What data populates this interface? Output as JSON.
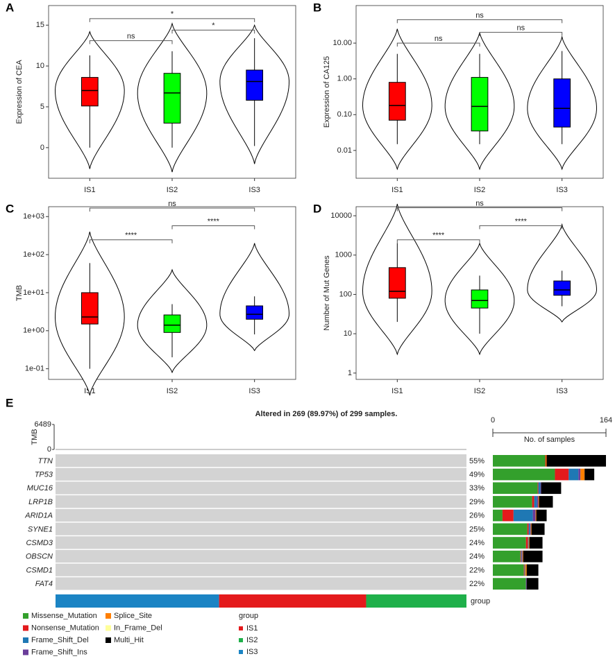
{
  "chart_data": [
    {
      "type": "violin-box",
      "panel": "A",
      "y_label": "Expression of CEA",
      "categories": [
        "IS1",
        "IS2",
        "IS3"
      ],
      "colors": [
        "#ff0000",
        "#00ff00",
        "#0000ff"
      ],
      "ylim": [
        -3.75,
        17.4
      ],
      "yticks": [
        0,
        5,
        10,
        15
      ],
      "boxes": [
        {
          "q1": 5.1,
          "median": 7.0,
          "q3": 8.6,
          "whisker_low": 0,
          "whisker_high": 11.3,
          "violin_min": -2.6,
          "violin_max": 14.2
        },
        {
          "q1": 3.0,
          "median": 6.7,
          "q3": 9.1,
          "whisker_low": 0,
          "whisker_high": 11.8,
          "violin_min": -3.0,
          "violin_max": 15.2
        },
        {
          "q1": 5.8,
          "median": 8.1,
          "q3": 9.5,
          "whisker_low": 0.2,
          "whisker_high": 13.4,
          "violin_min": -2.0,
          "violin_max": 15.0
        }
      ],
      "comparisons": [
        {
          "from": "IS1",
          "to": "IS2",
          "label": "ns",
          "y": 13.1
        },
        {
          "from": "IS2",
          "to": "IS3",
          "label": "*",
          "y": 14.4
        },
        {
          "from": "IS1",
          "to": "IS3",
          "label": "*",
          "y": 15.8
        }
      ]
    },
    {
      "type": "violin-box",
      "panel": "B",
      "y_label": "Expression of CA125",
      "categories": [
        "IS1",
        "IS2",
        "IS3"
      ],
      "log": true,
      "colors": [
        "#ff0000",
        "#00ff00",
        "#0000ff"
      ],
      "ylim": [
        0.00167,
        112
      ],
      "yticks": [
        {
          "value": 0.01,
          "label": "0.01"
        },
        {
          "value": 0.1,
          "label": "0.10"
        },
        {
          "value": 1,
          "label": "1.00"
        },
        {
          "value": 10,
          "label": "10.00"
        }
      ],
      "boxes": [
        {
          "q1": 0.07,
          "median": 0.18,
          "q3": 0.8,
          "whisker_low": 0.015,
          "whisker_high": 5,
          "violin_min": 0.003,
          "violin_max": 25
        },
        {
          "q1": 0.035,
          "median": 0.17,
          "q3": 1.1,
          "whisker_low": 0.015,
          "whisker_high": 5,
          "violin_min": 0.003,
          "violin_max": 20
        },
        {
          "q1": 0.045,
          "median": 0.15,
          "q3": 1.0,
          "whisker_low": 0.015,
          "whisker_high": 6,
          "violin_min": 0.003,
          "violin_max": 15
        }
      ],
      "comparisons": [
        {
          "from": "IS1",
          "to": "IS2",
          "label": "ns",
          "y": 10
        },
        {
          "from": "IS2",
          "to": "IS3",
          "label": "ns",
          "y": 20
        },
        {
          "from": "IS1",
          "to": "IS3",
          "label": "ns",
          "y": 45
        }
      ]
    },
    {
      "type": "violin-box",
      "panel": "C",
      "y_label": "TMB",
      "categories": [
        "IS1",
        "IS2",
        "IS3"
      ],
      "log": true,
      "colors": [
        "#ff0000",
        "#00ff00",
        "#0000ff"
      ],
      "ylim": [
        0.0525,
        1820
      ],
      "yticks": [
        {
          "value": 0.1,
          "label": "1e-01"
        },
        {
          "value": 1,
          "label": "1e+00"
        },
        {
          "value": 10,
          "label": "1e+01"
        },
        {
          "value": 100,
          "label": "1e+02"
        },
        {
          "value": 1000,
          "label": "1e+03"
        }
      ],
      "boxes": [
        {
          "q1": 1.5,
          "median": 2.3,
          "q3": 10,
          "whisker_low": 0.1,
          "whisker_high": 60,
          "violin_min": 0.02,
          "violin_max": 400
        },
        {
          "q1": 0.9,
          "median": 1.4,
          "q3": 2.6,
          "whisker_low": 0.2,
          "whisker_high": 5,
          "violin_min": 0.08,
          "violin_max": 40
        },
        {
          "q1": 2.0,
          "median": 2.7,
          "q3": 4.5,
          "whisker_low": 0.8,
          "whisker_high": 8,
          "violin_min": 0.3,
          "violin_max": 200
        }
      ],
      "comparisons": [
        {
          "from": "IS1",
          "to": "IS2",
          "label": "****",
          "y": 245
        },
        {
          "from": "IS2",
          "to": "IS3",
          "label": "****",
          "y": 575
        },
        {
          "from": "IS1",
          "to": "IS3",
          "label": "ns",
          "y": 1670
        }
      ]
    },
    {
      "type": "violin-box",
      "panel": "D",
      "y_label": "Number of Mut Genes",
      "categories": [
        "IS1",
        "IS2",
        "IS3"
      ],
      "log": true,
      "colors": [
        "#ff0000",
        "#00ff00",
        "#0000ff"
      ],
      "ylim": [
        0.69,
        17000
      ],
      "yticks": [
        1,
        10,
        100,
        1000,
        10000
      ],
      "boxes": [
        {
          "q1": 80,
          "median": 120,
          "q3": 480,
          "whisker_low": 20,
          "whisker_high": 2000,
          "violin_min": 3,
          "violin_max": 20000
        },
        {
          "q1": 45,
          "median": 70,
          "q3": 130,
          "whisker_low": 10,
          "whisker_high": 300,
          "violin_min": 3,
          "violin_max": 2000
        },
        {
          "q1": 95,
          "median": 130,
          "q3": 220,
          "whisker_low": 50,
          "whisker_high": 400,
          "violin_min": 20,
          "violin_max": 6000
        }
      ],
      "comparisons": [
        {
          "from": "IS1",
          "to": "IS2",
          "label": "****",
          "y": 2450
        },
        {
          "from": "IS2",
          "to": "IS3",
          "label": "****",
          "y": 5600
        },
        {
          "from": "IS1",
          "to": "IS3",
          "label": "ns",
          "y": 16000
        }
      ]
    },
    {
      "type": "oncoplot",
      "panel": "E",
      "title": "Altered in 269 (89.97%) of 299 samples.",
      "tmb_label": "TMB",
      "tmb_ylim": [
        0,
        6489
      ],
      "tmb_yticks": [
        0,
        6489
      ],
      "categories": [
        "TTN",
        "TP53",
        "MUC16",
        "LRP1B",
        "ARID1A",
        "SYNE1",
        "CSMD3",
        "OBSCN",
        "CSMD1",
        "FAT4"
      ],
      "values": [
        55,
        49,
        33,
        29,
        26,
        25,
        24,
        24,
        22,
        22
      ],
      "value_labels": [
        "55%",
        "49%",
        "33%",
        "29%",
        "26%",
        "25%",
        "24%",
        "24%",
        "22%",
        "22%"
      ],
      "x_label": "No. of samples",
      "xlim": [
        0,
        164
      ],
      "xticks": [
        0,
        164
      ],
      "series": [
        {
          "name": "Missense_Mutation",
          "color": "#33a02c",
          "values": [
            76,
            90,
            65,
            57,
            14,
            50,
            48,
            40,
            45,
            48
          ]
        },
        {
          "name": "Nonsense_Mutation",
          "color": "#e31a1c",
          "values": [
            1,
            20,
            1,
            3,
            16,
            2,
            3,
            1,
            1,
            0
          ]
        },
        {
          "name": "Frame_Shift_Del",
          "color": "#1f78b4",
          "values": [
            0,
            14,
            3,
            4,
            28,
            2,
            1,
            1,
            1,
            0
          ]
        },
        {
          "name": "Frame_Shift_Ins",
          "color": "#6a3d9a",
          "values": [
            0,
            3,
            1,
            2,
            4,
            1,
            0,
            1,
            0,
            1
          ]
        },
        {
          "name": "Splice_Site",
          "color": "#ff7f00",
          "values": [
            1,
            6,
            0,
            1,
            1,
            1,
            1,
            1,
            2,
            0
          ]
        },
        {
          "name": "In_Frame_Del",
          "color": "#ffff99",
          "values": [
            0,
            0,
            0,
            0,
            0,
            0,
            0,
            0,
            0,
            0
          ]
        },
        {
          "name": "Multi_Hit",
          "color": "#000000",
          "values": [
            86,
            14,
            29,
            20,
            15,
            19,
            19,
            28,
            17,
            17
          ]
        }
      ],
      "group_label": "group",
      "group_legend": [
        {
          "name": "IS1",
          "color": "#e41a1c"
        },
        {
          "name": "IS2",
          "color": "#1fb04a"
        },
        {
          "name": "IS3",
          "color": "#1b84c4"
        }
      ],
      "group_bar": [
        {
          "name": "IS3",
          "count": 119
        },
        {
          "name": "IS1",
          "count": 107
        },
        {
          "name": "IS2",
          "count": 73
        }
      ]
    }
  ]
}
